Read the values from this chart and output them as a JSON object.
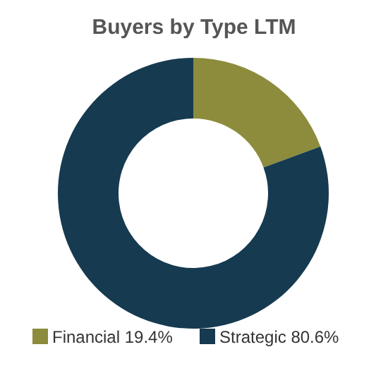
{
  "chart_data": {
    "type": "donut",
    "title": "Buyers by Type LTM",
    "categories": [
      "Financial",
      "Strategic"
    ],
    "values": [
      19.4,
      80.6
    ],
    "value_labels": [
      "19.4%",
      "80.6%"
    ],
    "colors": [
      "#8c8c3c",
      "#163a50"
    ],
    "legend": "bottom"
  }
}
